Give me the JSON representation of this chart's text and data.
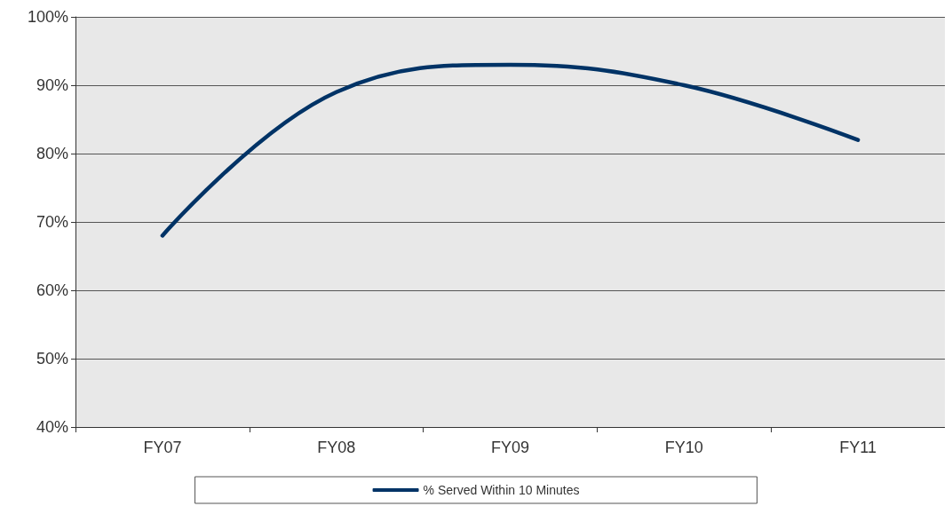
{
  "chart_data": {
    "type": "line",
    "categories": [
      "FY07",
      "FY08",
      "FY09",
      "FY10",
      "FY11"
    ],
    "series": [
      {
        "name": "% Served Within 10 Minutes",
        "color": "#003366",
        "values": [
          68,
          89,
          93,
          90,
          82
        ]
      }
    ],
    "ylim": [
      40,
      100
    ],
    "yticks": [
      {
        "value": 40,
        "label": "40%"
      },
      {
        "value": 50,
        "label": "50%"
      },
      {
        "value": 60,
        "label": "60%"
      },
      {
        "value": 70,
        "label": "70%"
      },
      {
        "value": 80,
        "label": "80%"
      },
      {
        "value": 90,
        "label": "90%"
      },
      {
        "value": 100,
        "label": "100%"
      }
    ],
    "grid": "y",
    "legend": "bottom",
    "marker": "none",
    "line_style": "solid"
  }
}
